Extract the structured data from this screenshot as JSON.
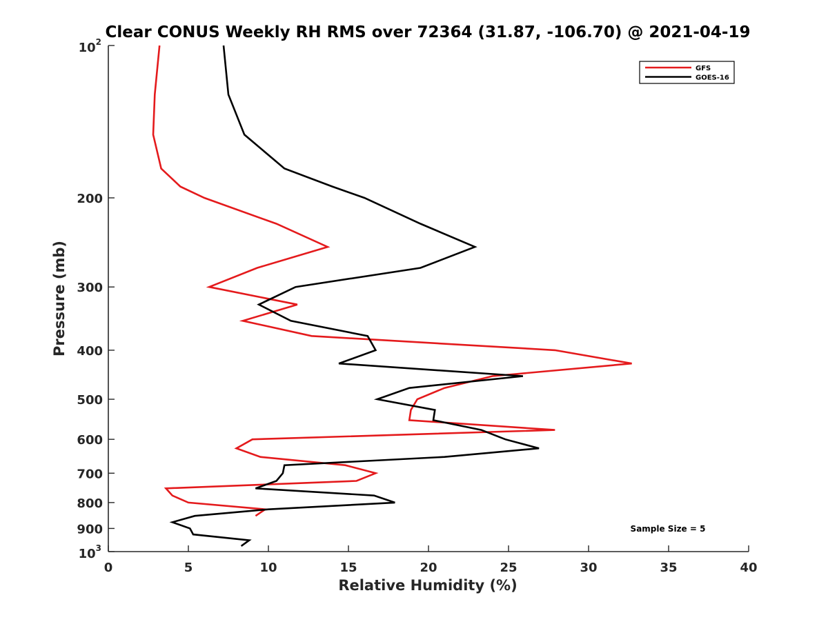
{
  "chart_data": {
    "type": "line",
    "title": "Clear CONUS Weekly RH RMS over 72364 (31.87, -106.70) @ 2021-04-19",
    "xlabel": "Relative Humidity (%)",
    "ylabel": "Pressure (mb)",
    "xlim": [
      0,
      40
    ],
    "ylim": [
      100,
      1000
    ],
    "y_scale": "log",
    "y_reversed": true,
    "grid": false,
    "legend_position": "top-right",
    "x_ticks": [
      0,
      5,
      10,
      15,
      20,
      25,
      30,
      35,
      40
    ],
    "y_ticks": [
      {
        "value": 100,
        "base": "10",
        "exp": "2"
      },
      {
        "value": 200,
        "label": "200"
      },
      {
        "value": 300,
        "label": "300"
      },
      {
        "value": 400,
        "label": "400"
      },
      {
        "value": 500,
        "label": "500"
      },
      {
        "value": 600,
        "label": "600"
      },
      {
        "value": 700,
        "label": "700"
      },
      {
        "value": 800,
        "label": "800"
      },
      {
        "value": 900,
        "label": "900"
      },
      {
        "value": 1000,
        "base": "10",
        "exp": "3"
      }
    ],
    "annotation": "Sample Size = 5",
    "series": [
      {
        "name": "GFS",
        "color": "#e41a1c",
        "points": [
          [
            3.2,
            100
          ],
          [
            2.9,
            125
          ],
          [
            2.8,
            150
          ],
          [
            3.3,
            175
          ],
          [
            4.5,
            190
          ],
          [
            6.0,
            200
          ],
          [
            10.5,
            225
          ],
          [
            13.7,
            250
          ],
          [
            9.3,
            275
          ],
          [
            6.3,
            300
          ],
          [
            11.8,
            325
          ],
          [
            8.4,
            350
          ],
          [
            12.7,
            375
          ],
          [
            27.9,
            400
          ],
          [
            32.7,
            425
          ],
          [
            24.0,
            450
          ],
          [
            21.0,
            475
          ],
          [
            19.3,
            500
          ],
          [
            18.9,
            525
          ],
          [
            18.8,
            550
          ],
          [
            27.9,
            575
          ],
          [
            9.0,
            600
          ],
          [
            8.0,
            625
          ],
          [
            9.5,
            650
          ],
          [
            14.8,
            675
          ],
          [
            16.7,
            700
          ],
          [
            15.5,
            725
          ],
          [
            3.6,
            750
          ],
          [
            4.0,
            775
          ],
          [
            5.0,
            800
          ],
          [
            9.8,
            825
          ],
          [
            9.2,
            850
          ]
        ]
      },
      {
        "name": "GOES-16",
        "color": "#000000",
        "points": [
          [
            7.2,
            100
          ],
          [
            7.5,
            125
          ],
          [
            8.5,
            150
          ],
          [
            11.0,
            175
          ],
          [
            14.0,
            190
          ],
          [
            16.0,
            200
          ],
          [
            19.5,
            225
          ],
          [
            22.9,
            250
          ],
          [
            19.5,
            275
          ],
          [
            11.7,
            300
          ],
          [
            9.4,
            325
          ],
          [
            11.4,
            350
          ],
          [
            16.2,
            375
          ],
          [
            16.7,
            400
          ],
          [
            14.4,
            425
          ],
          [
            25.9,
            450
          ],
          [
            18.8,
            475
          ],
          [
            16.8,
            500
          ],
          [
            20.4,
            525
          ],
          [
            20.3,
            550
          ],
          [
            23.3,
            575
          ],
          [
            24.8,
            600
          ],
          [
            26.9,
            625
          ],
          [
            21.0,
            650
          ],
          [
            11.0,
            675
          ],
          [
            10.9,
            700
          ],
          [
            10.5,
            725
          ],
          [
            9.2,
            750
          ],
          [
            16.6,
            775
          ],
          [
            17.9,
            800
          ],
          [
            10.0,
            825
          ],
          [
            5.4,
            850
          ],
          [
            4.0,
            875
          ],
          [
            5.1,
            900
          ],
          [
            5.3,
            925
          ],
          [
            8.8,
            950
          ],
          [
            8.3,
            975
          ]
        ]
      }
    ]
  }
}
